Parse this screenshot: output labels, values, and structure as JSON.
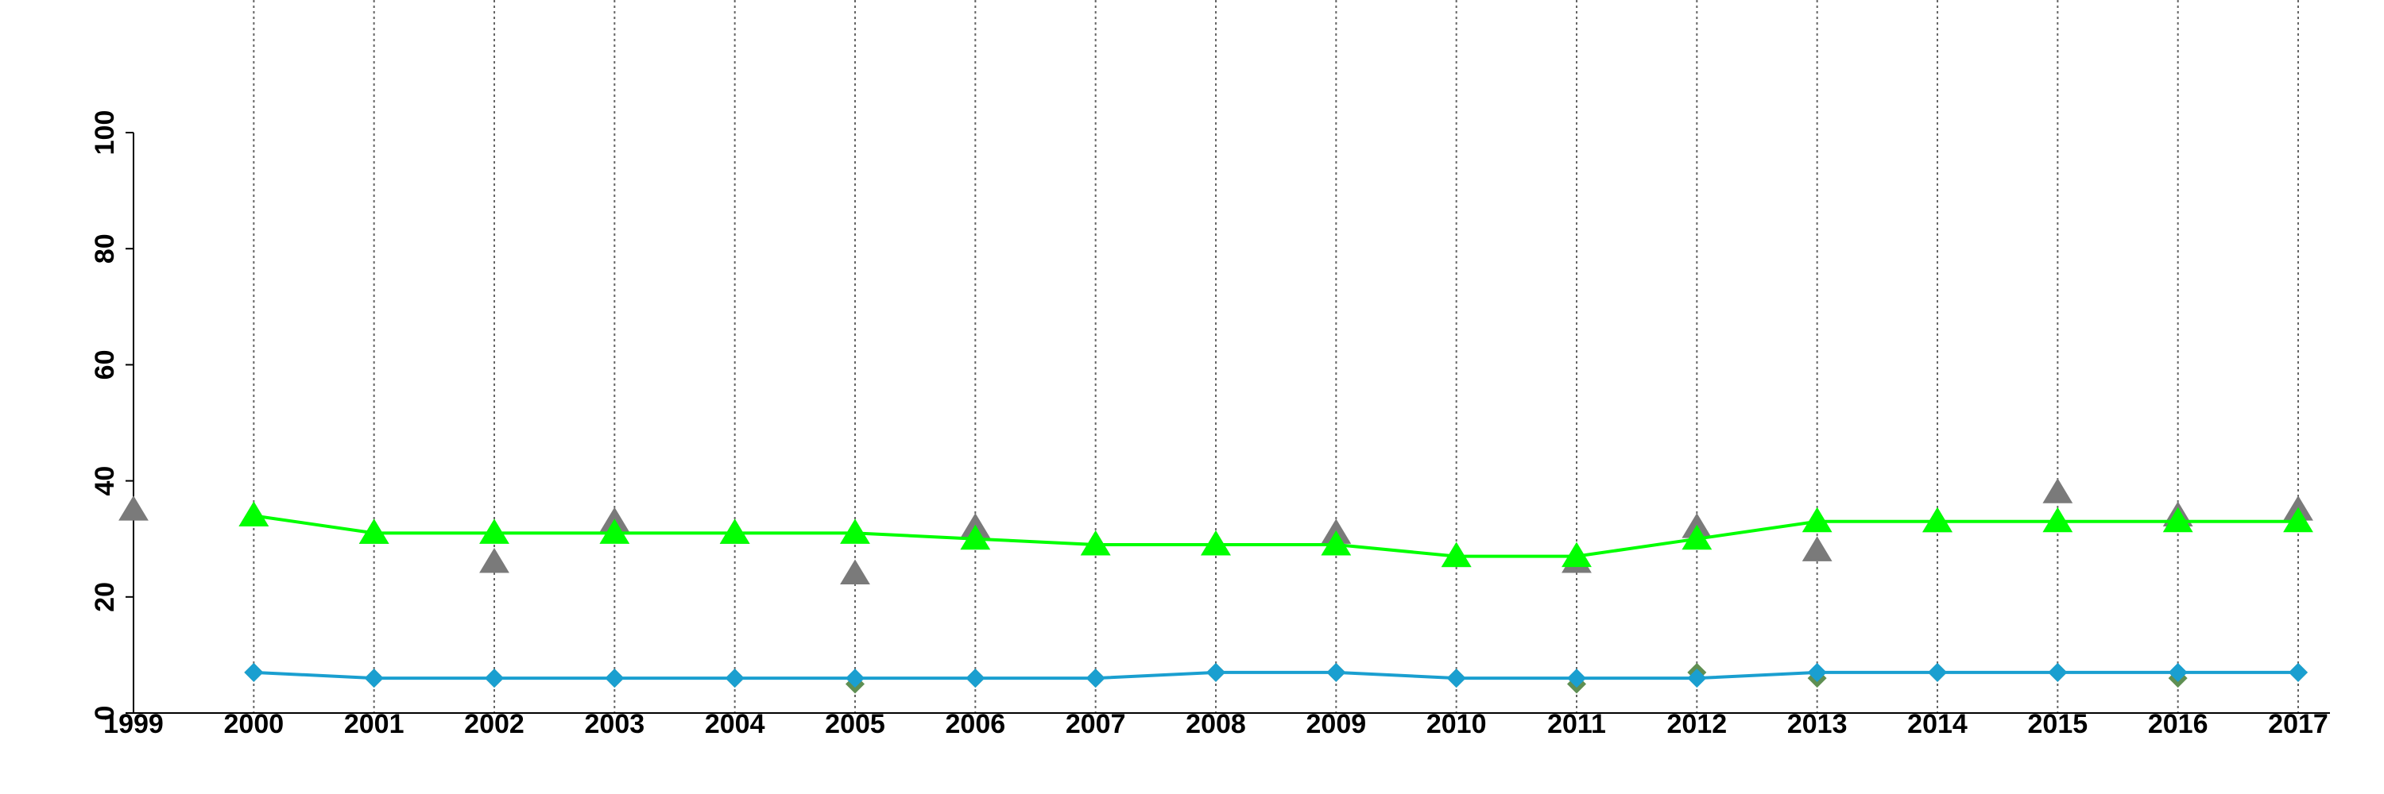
{
  "chart_data": {
    "type": "line",
    "x": [
      1999,
      2000,
      2001,
      2002,
      2003,
      2004,
      2005,
      2006,
      2007,
      2008,
      2009,
      2010,
      2011,
      2012,
      2013,
      2014,
      2015,
      2016,
      2017
    ],
    "series": [
      {
        "color": "#7a7a7a",
        "line": false,
        "marker": "triangle",
        "values": [
          35,
          34,
          31,
          26,
          33,
          31,
          24,
          32,
          29,
          29,
          31,
          27,
          26,
          32,
          28,
          33,
          38,
          34,
          35
        ]
      },
      {
        "color": "#00ff00",
        "line": true,
        "marker": "triangle",
        "values": [
          null,
          34,
          31,
          31,
          31,
          31,
          31,
          30,
          29,
          29,
          29,
          27,
          27,
          30,
          33,
          33,
          33,
          33,
          33
        ]
      },
      {
        "color": "#5f8f52",
        "line": false,
        "marker": "diamond",
        "values": [
          null,
          7,
          6,
          6,
          6,
          6,
          5,
          6,
          6,
          7,
          7,
          6,
          5,
          7,
          6,
          7,
          7,
          6,
          7
        ]
      },
      {
        "color": "#1a9fd0",
        "line": true,
        "marker": "diamond",
        "values": [
          null,
          7,
          6,
          6,
          6,
          6,
          6,
          6,
          6,
          7,
          7,
          6,
          6,
          6,
          7,
          7,
          7,
          7,
          7
        ]
      }
    ],
    "xlim": [
      1999,
      2017
    ],
    "xticks": [
      1999,
      2000,
      2001,
      2002,
      2003,
      2004,
      2005,
      2006,
      2007,
      2008,
      2009,
      2010,
      2011,
      2012,
      2013,
      2014,
      2015,
      2016,
      2017
    ],
    "ylim": [
      0,
      100
    ],
    "yticks": [
      0,
      20,
      40,
      60,
      80,
      100
    ],
    "grid": "x"
  }
}
